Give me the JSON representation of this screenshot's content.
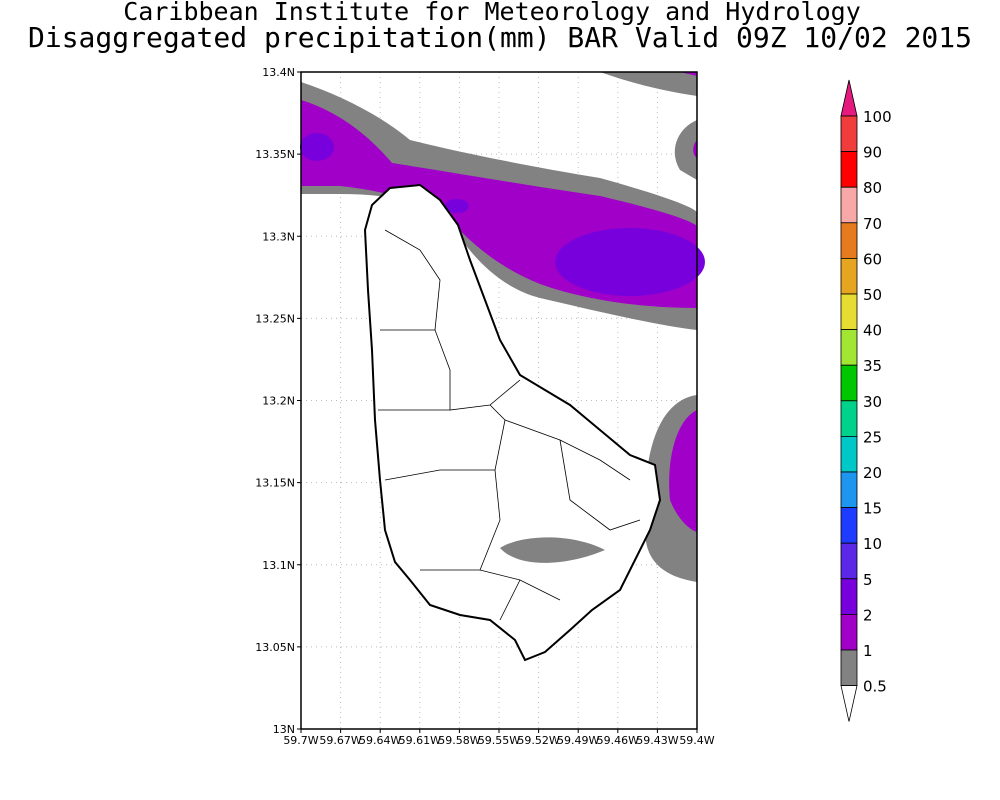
{
  "header": {
    "title": "Caribbean Institute for Meteorology and Hydrology",
    "subtitle": "Disaggregated precipitation(mm) BAR Valid 09Z 10/02 2015"
  },
  "map": {
    "xticks": [
      "59.7W",
      "59.67W",
      "59.64W",
      "59.61W",
      "59.58W",
      "59.55W",
      "59.52W",
      "59.49W",
      "59.46W",
      "59.43W",
      "59.4W"
    ],
    "yticks": [
      "13.4N",
      "13.35N",
      "13.3N",
      "13.25N",
      "13.2N",
      "13.15N",
      "13.1N",
      "13.05N",
      "13N"
    ]
  },
  "colorbar": {
    "labels": [
      "100",
      "90",
      "80",
      "70",
      "60",
      "50",
      "40",
      "35",
      "30",
      "25",
      "20",
      "15",
      "10",
      "5",
      "2",
      "1",
      "0.5"
    ],
    "over_color": "#e6197f",
    "colors": [
      "#f03c3c",
      "#ff0000",
      "#f9a8a8",
      "#e67a1e",
      "#e6a520",
      "#e6dc32",
      "#a0e632",
      "#00c800",
      "#00d28c",
      "#00c8c8",
      "#1e96f0",
      "#1e3cff",
      "#5a28e6",
      "#7800dc",
      "#a000c8",
      "#828282"
    ],
    "under_color": "#ffffff"
  }
}
